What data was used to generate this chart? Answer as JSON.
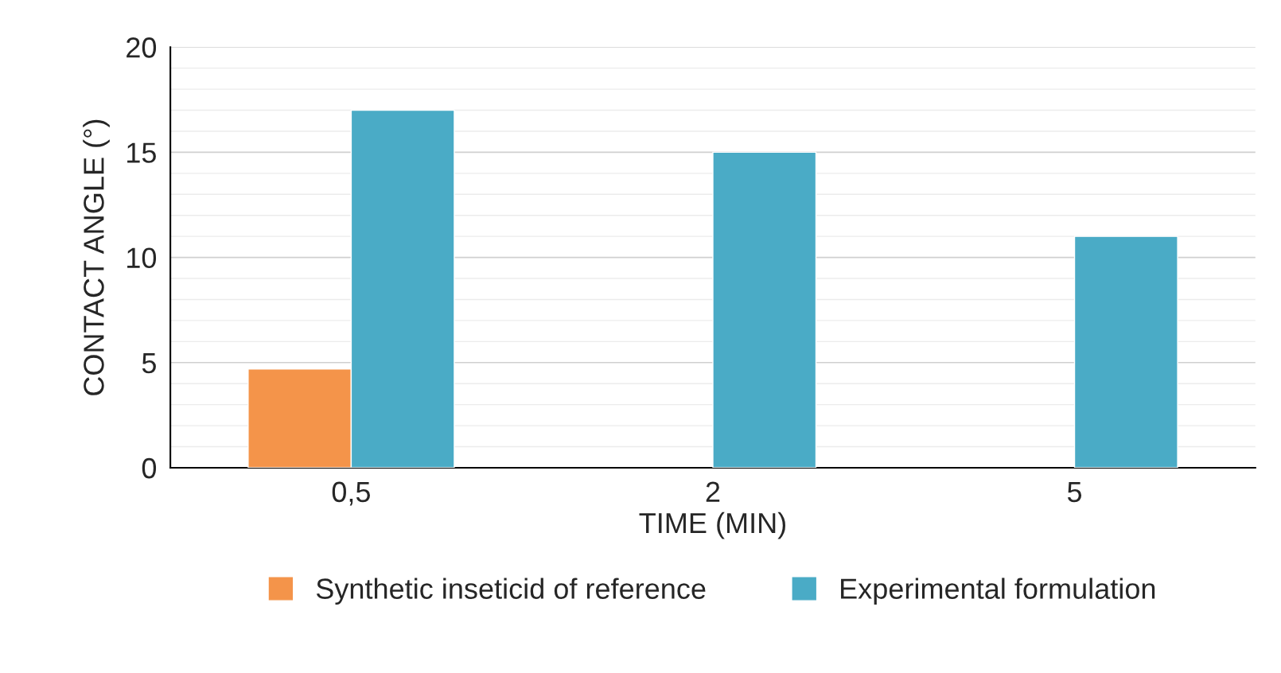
{
  "chart_data": {
    "type": "bar",
    "categories": [
      "0,5",
      "2",
      "5"
    ],
    "series": [
      {
        "name": "Synthetic inseticid of reference",
        "color": "#f4944a",
        "values": [
          4.7,
          null,
          null
        ]
      },
      {
        "name": "Experimental formulation",
        "color": "#4aabc6",
        "values": [
          17,
          15,
          11
        ]
      }
    ],
    "xlabel": "TIME (MIN)",
    "ylabel": "CONTACT ANGLE (°)",
    "ylim": [
      0,
      20
    ],
    "yticks": [
      0,
      5,
      10,
      15,
      20
    ],
    "grid": "y",
    "legend": "bottom"
  }
}
